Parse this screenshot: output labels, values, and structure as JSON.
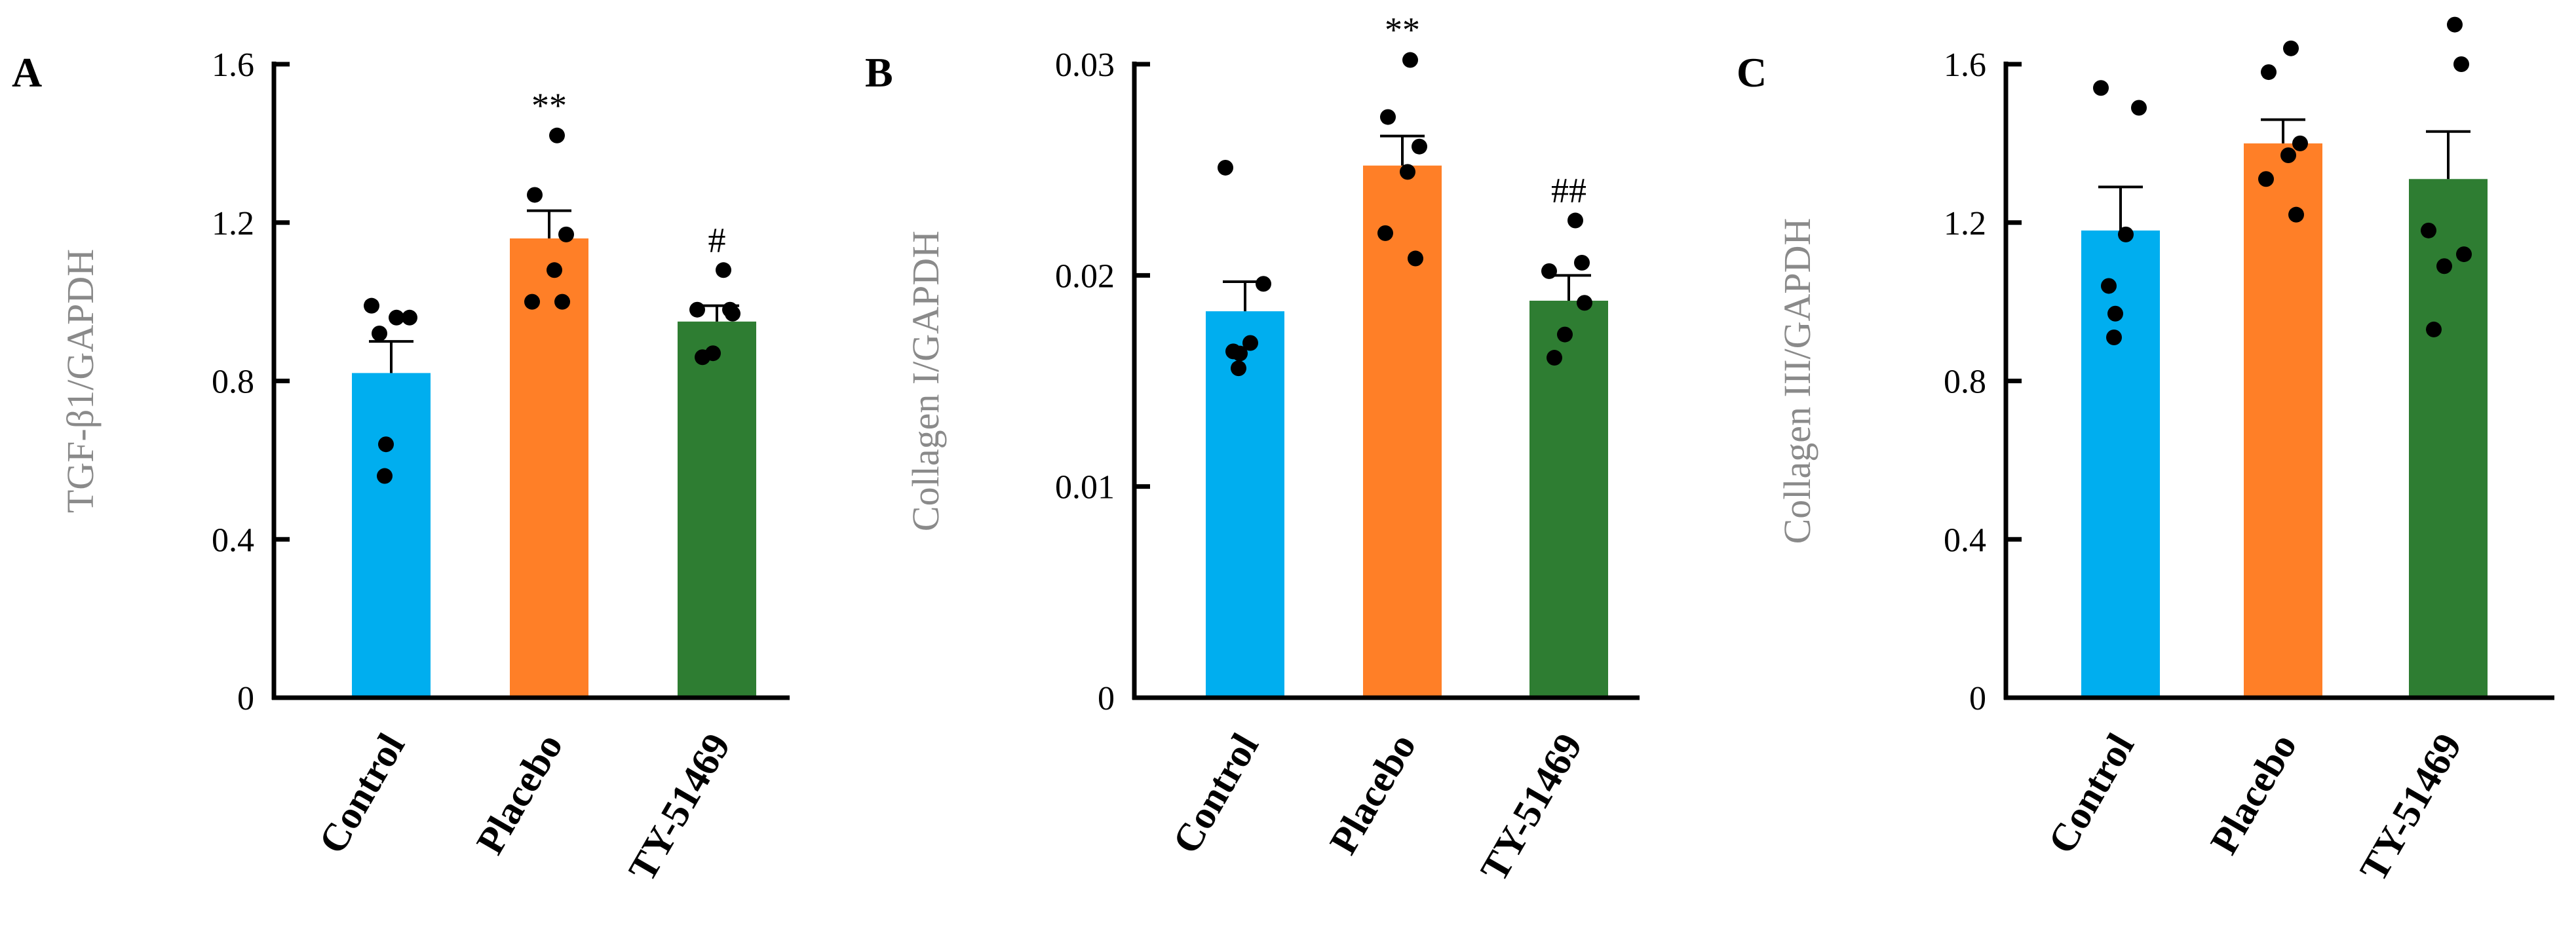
{
  "colors": {
    "control": "#00aeef",
    "placebo": "#ff7f27",
    "ty51469": "#2e7d32",
    "axis": "#000000",
    "ylabel": "#8a8a8a"
  },
  "chart_data": [
    {
      "panel": "A",
      "type": "bar",
      "ylabel": "TGF-β1/GAPDH",
      "ylim": [
        0,
        1.6
      ],
      "yticks": [
        0,
        0.4,
        0.8,
        1.2,
        1.6
      ],
      "ytick_labels": [
        "0",
        "0.4",
        "0.8",
        "1.2",
        "1.6"
      ],
      "categories": [
        "Control",
        "Placebo",
        "TY-51469"
      ],
      "values": [
        0.82,
        1.16,
        0.95
      ],
      "errors": [
        0.08,
        0.07,
        0.04
      ],
      "annotations": [
        "",
        "**",
        "#"
      ],
      "points": [
        [
          0.99,
          0.96,
          0.96,
          0.92,
          0.64,
          0.56
        ],
        [
          1.42,
          1.27,
          1.17,
          1.08,
          1.0,
          1.0
        ],
        [
          1.08,
          0.98,
          0.98,
          0.97,
          0.87,
          0.86
        ]
      ]
    },
    {
      "panel": "B",
      "type": "bar",
      "ylabel": "Collagen I/GAPDH",
      "ylim": [
        0,
        0.03
      ],
      "yticks": [
        0,
        0.01,
        0.02,
        0.03
      ],
      "ytick_labels": [
        "0",
        "0.01",
        "0.02",
        "0.03"
      ],
      "categories": [
        "Control",
        "Placebo",
        "TY-51469"
      ],
      "values": [
        0.0183,
        0.0252,
        0.0188
      ],
      "errors": [
        0.0014,
        0.0014,
        0.0012
      ],
      "annotations": [
        "",
        "**",
        "##"
      ],
      "points": [
        [
          0.0251,
          0.0196,
          0.0168,
          0.0164,
          0.0163,
          0.0156
        ],
        [
          0.0302,
          0.0275,
          0.0261,
          0.0249,
          0.022,
          0.0208
        ],
        [
          0.0226,
          0.0206,
          0.0202,
          0.0187,
          0.0172,
          0.0161
        ]
      ]
    },
    {
      "panel": "C",
      "type": "bar",
      "ylabel": "Collagen III/GAPDH",
      "ylim": [
        0,
        1.6
      ],
      "yticks": [
        0,
        0.4,
        0.8,
        1.2,
        1.6
      ],
      "ytick_labels": [
        "0",
        "0.4",
        "0.8",
        "1.2",
        "1.6"
      ],
      "categories": [
        "Control",
        "Placebo",
        "TY-51469"
      ],
      "values": [
        1.18,
        1.4,
        1.31
      ],
      "errors": [
        0.11,
        0.06,
        0.12
      ],
      "annotations": [
        "",
        "",
        ""
      ],
      "points": [
        [
          1.54,
          1.49,
          1.17,
          1.04,
          0.97,
          0.91
        ],
        [
          1.64,
          1.58,
          1.4,
          1.37,
          1.31,
          1.22
        ],
        [
          1.7,
          1.6,
          1.18,
          1.12,
          1.09,
          0.93
        ]
      ]
    }
  ]
}
